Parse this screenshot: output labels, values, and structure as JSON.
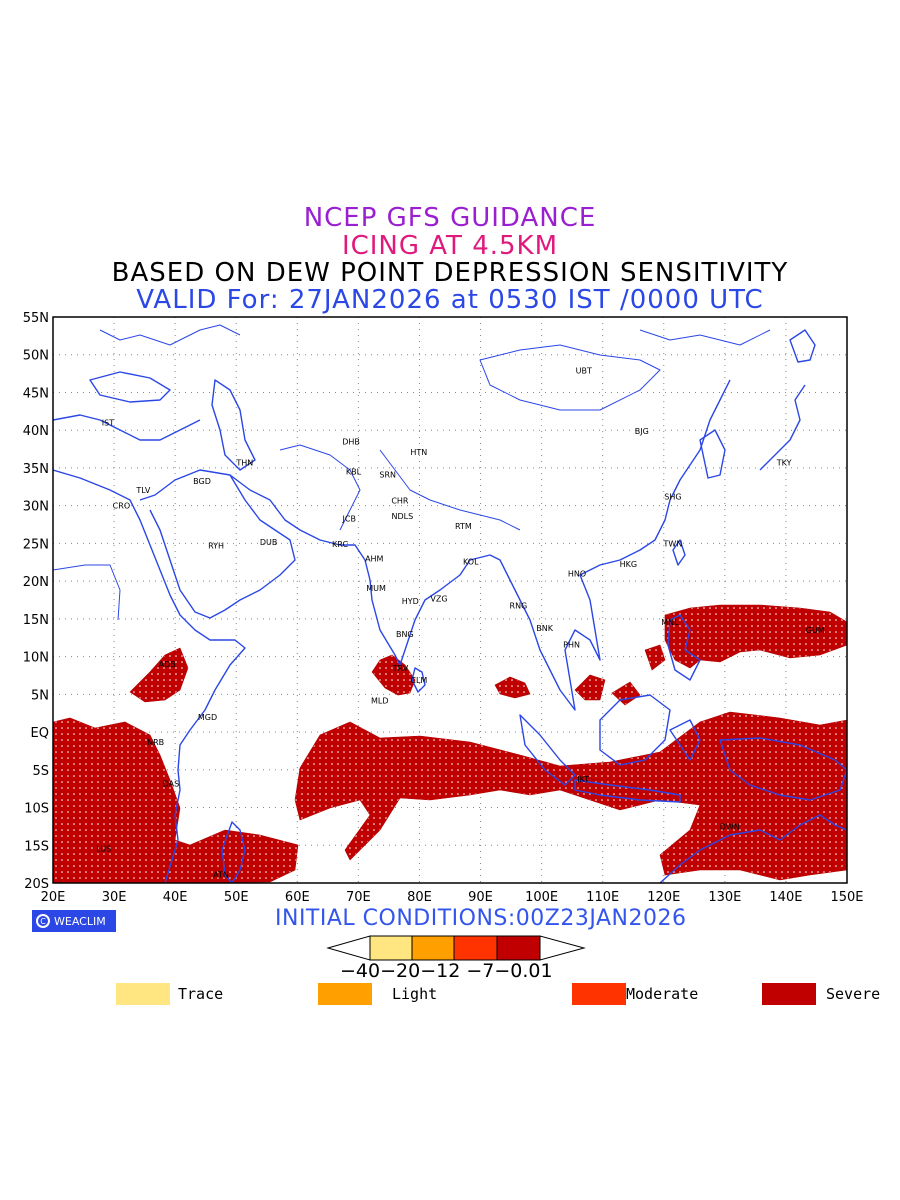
{
  "title": {
    "line1": "NCEP GFS GUIDANCE",
    "line2": "ICING AT 4.5KM",
    "line3": "BASED ON DEW POINT DEPRESSION SENSITIVITY",
    "line4": "VALID For: 27JAN2026 at 0530 IST /0000 UTC"
  },
  "colors": {
    "line1": "#9a1fd0",
    "line2": "#e0197d",
    "line3": "#000000",
    "line4": "#2b47e6",
    "coast": "#2b47e6",
    "severe": "#c00000",
    "moderate": "#ff3300",
    "light": "#ffa000",
    "trace": "#ffe680"
  },
  "axes": {
    "x_ticks": [
      "20E",
      "30E",
      "40E",
      "50E",
      "60E",
      "70E",
      "80E",
      "90E",
      "100E",
      "110E",
      "120E",
      "130E",
      "140E",
      "150E"
    ],
    "y_ticks": [
      "55N",
      "50N",
      "45N",
      "40N",
      "35N",
      "30N",
      "25N",
      "20N",
      "15N",
      "10N",
      "5N",
      "EQ",
      "5S",
      "10S",
      "15S",
      "20S"
    ],
    "lon_range": [
      20,
      150
    ],
    "lat_range": [
      -20,
      55
    ],
    "grid": "dotted"
  },
  "cities": [
    {
      "name": "UBT",
      "lon": 106.9,
      "lat": 47.9
    },
    {
      "name": "IST",
      "lon": 29.0,
      "lat": 41.0
    },
    {
      "name": "BJG",
      "lon": 116.4,
      "lat": 39.9
    },
    {
      "name": "DHB",
      "lon": 68.8,
      "lat": 38.5
    },
    {
      "name": "HTN",
      "lon": 79.9,
      "lat": 37.1
    },
    {
      "name": "TKY",
      "lon": 139.7,
      "lat": 35.7
    },
    {
      "name": "THN",
      "lon": 51.4,
      "lat": 35.7
    },
    {
      "name": "KBL",
      "lon": 69.2,
      "lat": 34.5
    },
    {
      "name": "SRN",
      "lon": 74.8,
      "lat": 34.1
    },
    {
      "name": "BGD",
      "lon": 44.4,
      "lat": 33.3
    },
    {
      "name": "TLV",
      "lon": 34.8,
      "lat": 32.1
    },
    {
      "name": "CHR",
      "lon": 76.8,
      "lat": 30.7
    },
    {
      "name": "SHG",
      "lon": 121.5,
      "lat": 31.2
    },
    {
      "name": "CRO",
      "lon": 31.2,
      "lat": 30.0
    },
    {
      "name": "JCB",
      "lon": 68.5,
      "lat": 28.3
    },
    {
      "name": "NDLS",
      "lon": 77.2,
      "lat": 28.6
    },
    {
      "name": "RTM",
      "lon": 87.2,
      "lat": 27.3
    },
    {
      "name": "TWN",
      "lon": 121.5,
      "lat": 25.0
    },
    {
      "name": "RYH",
      "lon": 46.7,
      "lat": 24.7
    },
    {
      "name": "DUB",
      "lon": 55.3,
      "lat": 25.2
    },
    {
      "name": "KRC",
      "lon": 67.0,
      "lat": 24.9
    },
    {
      "name": "AHM",
      "lon": 72.6,
      "lat": 23.0
    },
    {
      "name": "KOL",
      "lon": 88.4,
      "lat": 22.6
    },
    {
      "name": "HNO",
      "lon": 105.8,
      "lat": 21.0
    },
    {
      "name": "HKG",
      "lon": 114.2,
      "lat": 22.3
    },
    {
      "name": "MUM",
      "lon": 72.9,
      "lat": 19.1
    },
    {
      "name": "HYD",
      "lon": 78.5,
      "lat": 17.4
    },
    {
      "name": "VZG",
      "lon": 83.2,
      "lat": 17.7
    },
    {
      "name": "RNG",
      "lon": 96.2,
      "lat": 16.8
    },
    {
      "name": "MNL",
      "lon": 121.0,
      "lat": 14.6
    },
    {
      "name": "GUM",
      "lon": 144.8,
      "lat": 13.5
    },
    {
      "name": "BNK",
      "lon": 100.5,
      "lat": 13.8
    },
    {
      "name": "BNG",
      "lon": 77.6,
      "lat": 13.0
    },
    {
      "name": "PHN",
      "lon": 104.9,
      "lat": 11.6
    },
    {
      "name": "ADB",
      "lon": 38.7,
      "lat": 9.0
    },
    {
      "name": "TRV",
      "lon": 76.9,
      "lat": 8.5
    },
    {
      "name": "CLM",
      "lon": 79.9,
      "lat": 6.9
    },
    {
      "name": "MLD",
      "lon": 73.5,
      "lat": 4.2
    },
    {
      "name": "MGD",
      "lon": 45.3,
      "lat": 2.0
    },
    {
      "name": "NRB",
      "lon": 36.8,
      "lat": -1.3
    },
    {
      "name": "DAS",
      "lon": 39.3,
      "lat": -6.8
    },
    {
      "name": "JKT",
      "lon": 106.8,
      "lat": -6.2
    },
    {
      "name": "DWN",
      "lon": 130.8,
      "lat": -12.5
    },
    {
      "name": "LUS",
      "lon": 28.3,
      "lat": -15.4
    },
    {
      "name": "ATN",
      "lon": 47.5,
      "lat": -18.9
    }
  ],
  "initial_conditions": "INITIAL CONDITIONS:00Z23JAN2026",
  "logo_text": "WEACLIM",
  "colorbar": {
    "tick_text": "−40−20−12 −7−0.01",
    "ticks": [
      "-40",
      "-20",
      "-12",
      "-7",
      "-0.01"
    ],
    "colors": [
      "#ffe680",
      "#ffa000",
      "#ff3300",
      "#c00000"
    ]
  },
  "legend": [
    {
      "label": "Trace",
      "color": "#ffe680"
    },
    {
      "label": "Light",
      "color": "#ffa000"
    },
    {
      "label": "Moderate",
      "color": "#ff3300"
    },
    {
      "label": "Severe",
      "color": "#c00000"
    }
  ]
}
